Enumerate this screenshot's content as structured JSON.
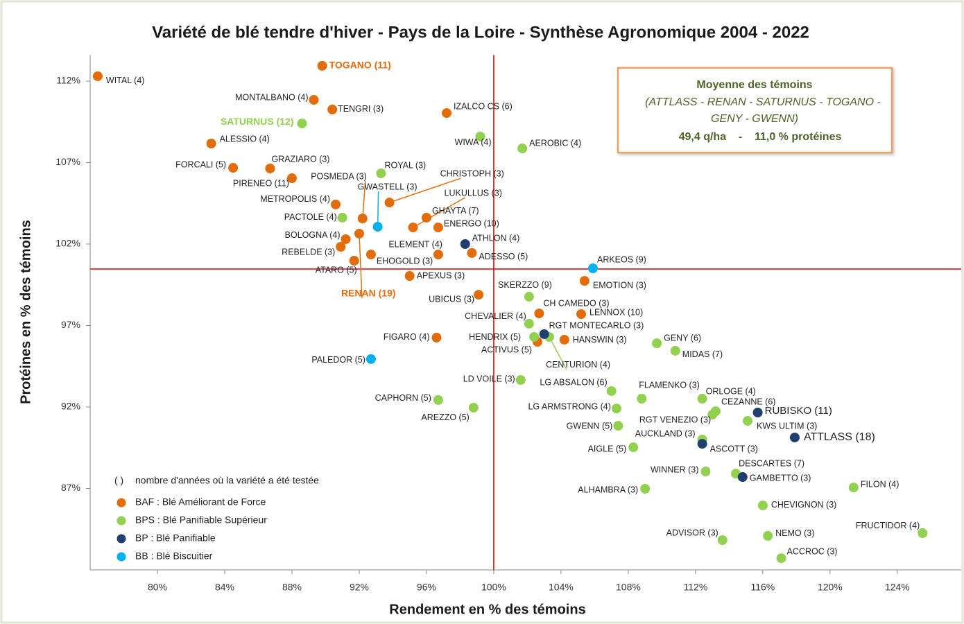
{
  "chart_data": {
    "type": "scatter",
    "title": "Variété de blé tendre d'hiver - Pays de la Loire - Synthèse Agronomique 2004 - 2022",
    "x_label": "Rendement en % des témoins",
    "y_label": "Protéines en % des témoins",
    "xlim": [
      76,
      127.8
    ],
    "ylim": [
      82,
      113.6
    ],
    "xticks": [
      {
        "value": 80,
        "label": "80%"
      },
      {
        "value": 84,
        "label": "84%"
      },
      {
        "value": 88,
        "label": "88%"
      },
      {
        "value": 92,
        "label": "92%"
      },
      {
        "value": 96,
        "label": "96%"
      },
      {
        "value": 100,
        "label": "100%"
      },
      {
        "value": 104,
        "label": "104%"
      },
      {
        "value": 108,
        "label": "108%"
      },
      {
        "value": 112,
        "label": "112%"
      },
      {
        "value": 116,
        "label": "116%"
      },
      {
        "value": 120,
        "label": "120%"
      },
      {
        "value": 124,
        "label": "124%"
      }
    ],
    "yticks": [
      {
        "value": 87,
        "label": "87%"
      },
      {
        "value": 92,
        "label": "92%"
      },
      {
        "value": 97,
        "label": "97%"
      },
      {
        "value": 102,
        "label": "102%"
      },
      {
        "value": 107,
        "label": "107%"
      },
      {
        "value": 112,
        "label": "112%"
      }
    ],
    "reference_x": 100,
    "reference_y": 100.47,
    "reference_color": "#e00000",
    "legend_note": {
      "symbol": "( )",
      "text": "nombre d'années où la variété a été testée"
    },
    "annotation": {
      "title": "Moyenne des témoins",
      "lines": [
        "(ATTLASS - RENAN - SATURNUS -  TOGANO -",
        "GENY - GWENN)"
      ],
      "summary": "49,4 q/ha    -    11,0 % protéines"
    },
    "series": [
      {
        "name": "BAF : Blé Améliorant de Force",
        "color": "#e36c0a",
        "labels": [
          "WITAL (4)",
          "TOGANO (11)",
          "MONTALBANO (4)",
          "TENGRI (3)",
          "IZALCO CS (6)",
          "ALESSIO (4)",
          "FORCALI (5)",
          "GRAZIARO (3)",
          "PIRENEO (11)",
          "POSMEDA (3)",
          "CHRISTOPH (3)",
          "LUKULLUS (3)",
          "METROPOLIS (4)",
          "GHAYTA (7)",
          "ENERGO (10)",
          "BOLOGNA (4)",
          "RENAN (19)",
          "REBELDE (3)",
          "ELEMENT (4)",
          "EHOGOLD (3)",
          "ATARO (5)",
          "ADESSO (5)",
          "APEXUS (3)",
          "EMOTION (3)",
          "UBICUS (3)",
          "CH CAMEDO (3)",
          "LENNOX (10)",
          "FIGARO (4)",
          "HANSWIN (3)",
          "ACTIVUS (5)"
        ],
        "x": [
          76.45,
          89.8,
          89.3,
          90.4,
          97.2,
          83.2,
          84.5,
          86.7,
          88.0,
          92.2,
          93.8,
          95.2,
          90.6,
          96.0,
          96.7,
          91.2,
          92.0,
          90.9,
          96.7,
          92.7,
          91.7,
          98.7,
          95.0,
          105.4,
          99.1,
          102.7,
          105.2,
          96.6,
          104.2,
          102.6
        ],
        "y": [
          112.3,
          112.94,
          110.85,
          110.26,
          110.04,
          108.17,
          106.68,
          106.64,
          106.04,
          103.57,
          104.55,
          103.02,
          104.43,
          103.62,
          103.02,
          102.3,
          102.64,
          101.83,
          101.36,
          101.36,
          100.98,
          101.45,
          100.04,
          99.74,
          98.89,
          97.74,
          97.7,
          96.26,
          96.13,
          96.0
        ]
      },
      {
        "name": "BPS : Blé Panifiable Supérieur",
        "color": "#92d050",
        "labels": [
          "SATURNUS (12)",
          "WIWA (4)",
          "AEROBIC (4)",
          "ROYAL (3)",
          "PACTOLE (4)",
          "SKERZZO (9)",
          "CHEVALIER (4)",
          "HENDRIX (5)",
          "CENTURION (4)",
          "GENY (6)",
          "MIDAS (7)",
          "LD VOILE (3)",
          "LG ABSALON (6)",
          "FLAMENKO (3)",
          "ORLOGE (4)",
          "CAPHORN (5)",
          "AREZZO (5)",
          "LG ARMSTRONG (4)",
          "CEZANNE (6)",
          "RGT VENEZIO (3)",
          "KWS ULTIM (3)",
          "GWENN (5)",
          "AUCKLAND (3)",
          "AIGLE (5)",
          "WINNER (3)",
          "DESCARTES (7)",
          "ALHAMBRA (3)",
          "FILON (4)",
          "CHEVIGNON (3)",
          "FRUCTIDOR (4)",
          "ADVISOR (3)",
          "NEMO (3)",
          "ACCROC (3)"
        ],
        "x": [
          88.6,
          99.2,
          101.7,
          93.3,
          91.0,
          102.1,
          102.1,
          102.4,
          103.3,
          109.7,
          110.8,
          101.6,
          107.0,
          108.8,
          112.4,
          96.7,
          98.8,
          107.3,
          113.2,
          113.0,
          115.1,
          107.4,
          112.4,
          108.3,
          112.6,
          114.4,
          109.0,
          121.4,
          116.0,
          125.5,
          113.6,
          116.3,
          117.1
        ],
        "y": [
          109.4,
          108.6,
          107.87,
          106.34,
          103.62,
          98.77,
          97.11,
          96.3,
          96.3,
          95.91,
          95.45,
          93.66,
          92.98,
          92.51,
          92.51,
          92.43,
          91.96,
          91.91,
          91.74,
          91.53,
          91.15,
          90.85,
          90.0,
          89.53,
          88.04,
          87.91,
          86.98,
          87.06,
          85.96,
          84.26,
          83.83,
          84.09,
          82.72
        ]
      },
      {
        "name": "BP : Blé Panifiable",
        "color": "#1f3f6e",
        "labels": [
          "ATHLON (4)",
          "RGT MONTECARLO (3)",
          "RUBISKO (11)",
          "ATTLASS (18)",
          "ASCOTT (3)",
          "GAMBETTO (3)"
        ],
        "x": [
          98.3,
          103.0,
          115.7,
          117.9,
          112.4,
          114.8
        ],
        "y": [
          102.0,
          96.47,
          91.66,
          90.13,
          89.74,
          87.7
        ]
      },
      {
        "name": "BB : Blé Biscuitier",
        "color": "#00b0f0",
        "labels": [
          "GWASTELL (3)",
          "ARKEOS (9)",
          "PALEDOR (5)"
        ],
        "x": [
          93.1,
          105.9,
          92.7
        ],
        "y": [
          103.06,
          100.51,
          94.94
        ]
      }
    ]
  }
}
